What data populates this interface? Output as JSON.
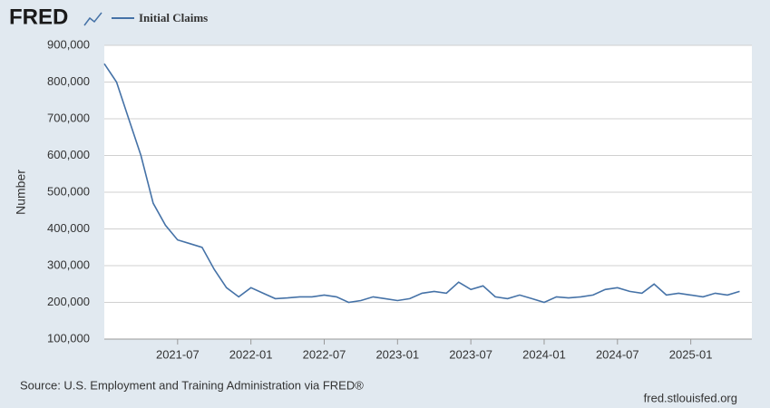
{
  "logo": "FRED",
  "chart_data": {
    "type": "line",
    "y_label": "Number",
    "series": [
      {
        "name": "Initial Claims",
        "color": "#4572a7",
        "values": [
          850000,
          800000,
          700000,
          600000,
          470000,
          410000,
          370000,
          360000,
          350000,
          290000,
          240000,
          215000,
          240000,
          225000,
          210000,
          212000,
          215000,
          215000,
          220000,
          215000,
          200000,
          205000,
          215000,
          210000,
          205000,
          210000,
          225000,
          230000,
          225000,
          255000,
          235000,
          245000,
          215000,
          210000,
          220000,
          210000,
          200000,
          215000,
          212000,
          215000,
          220000,
          235000,
          240000,
          230000,
          225000,
          250000,
          220000,
          225000,
          220000,
          215000,
          225000,
          220000,
          230000
        ]
      }
    ],
    "x": [
      "2021-01",
      "2021-02",
      "2021-03",
      "2021-04",
      "2021-05",
      "2021-06",
      "2021-07",
      "2021-08",
      "2021-09",
      "2021-10",
      "2021-11",
      "2021-12",
      "2022-01",
      "2022-02",
      "2022-03",
      "2022-04",
      "2022-05",
      "2022-06",
      "2022-07",
      "2022-08",
      "2022-09",
      "2022-10",
      "2022-11",
      "2022-12",
      "2023-01",
      "2023-02",
      "2023-03",
      "2023-04",
      "2023-05",
      "2023-06",
      "2023-07",
      "2023-08",
      "2023-09",
      "2023-10",
      "2023-11",
      "2023-12",
      "2024-01",
      "2024-02",
      "2024-03",
      "2024-04",
      "2024-05",
      "2024-06",
      "2024-07",
      "2024-08",
      "2024-09",
      "2024-10",
      "2024-11",
      "2024-12",
      "2025-01",
      "2025-02",
      "2025-03",
      "2025-04",
      "2025-05"
    ],
    "xlim": [
      "2021-01",
      "2025-06"
    ],
    "xticks": [
      "2021-07",
      "2022-01",
      "2022-07",
      "2023-01",
      "2023-07",
      "2024-01",
      "2024-07",
      "2025-01"
    ],
    "ylim": [
      100000,
      900000
    ],
    "yticks": [
      {
        "value": 100000,
        "label": "100,000"
      },
      {
        "value": 200000,
        "label": "200,000"
      },
      {
        "value": 300000,
        "label": "300,000"
      },
      {
        "value": 400000,
        "label": "400,000"
      },
      {
        "value": 500000,
        "label": "500,000"
      },
      {
        "value": 600000,
        "label": "600,000"
      },
      {
        "value": 700000,
        "label": "700,000"
      },
      {
        "value": 800000,
        "label": "800,000"
      },
      {
        "value": 900000,
        "label": "900,000"
      }
    ],
    "grid": true,
    "source": "Source: U.S. Employment and Training Administration via FRED®",
    "credit": "fred.stlouisfed.org"
  }
}
